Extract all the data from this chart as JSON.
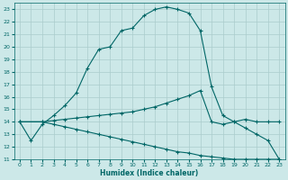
{
  "xlabel": "Humidex (Indice chaleur)",
  "background_color": "#cce8e8",
  "grid_color": "#aacccc",
  "line_color": "#006666",
  "xlim": [
    -0.5,
    23.5
  ],
  "ylim": [
    11,
    23.5
  ],
  "yticks": [
    11,
    12,
    13,
    14,
    15,
    16,
    17,
    18,
    19,
    20,
    21,
    22,
    23
  ],
  "xticks": [
    0,
    1,
    2,
    3,
    4,
    5,
    6,
    7,
    8,
    9,
    10,
    11,
    12,
    13,
    14,
    15,
    16,
    17,
    18,
    19,
    20,
    21,
    22,
    23
  ],
  "line1_x": [
    0,
    1,
    2,
    3,
    4,
    5,
    6,
    7,
    8,
    9,
    10,
    11,
    12,
    13,
    14,
    15,
    16,
    17,
    18,
    19,
    20,
    21,
    22,
    23
  ],
  "line1_y": [
    14,
    12.5,
    13.8,
    14.5,
    15.3,
    16.3,
    18.3,
    19.8,
    20.0,
    21.3,
    21.5,
    22.5,
    23.0,
    23.2,
    23.0,
    22.7,
    21.3,
    16.8,
    14.5,
    14.0,
    13.5,
    13.0,
    12.5,
    11.0
  ],
  "line2_x": [
    0,
    2,
    3,
    4,
    5,
    6,
    7,
    8,
    9,
    10,
    11,
    12,
    13,
    14,
    15,
    16,
    17,
    18,
    19,
    20,
    21,
    22,
    23
  ],
  "line2_y": [
    14,
    14.0,
    14.1,
    14.2,
    14.3,
    14.4,
    14.5,
    14.6,
    14.7,
    14.8,
    15.0,
    15.2,
    15.5,
    15.8,
    16.1,
    16.5,
    14.0,
    13.8,
    14.0,
    14.2,
    14.0,
    14.0,
    14.0
  ],
  "line3_x": [
    0,
    2,
    3,
    4,
    5,
    6,
    7,
    8,
    9,
    10,
    11,
    12,
    13,
    14,
    15,
    16,
    17,
    18,
    19,
    20,
    21,
    22,
    23
  ],
  "line3_y": [
    14,
    14.0,
    13.8,
    13.6,
    13.4,
    13.2,
    13.0,
    12.8,
    12.6,
    12.4,
    12.2,
    12.0,
    11.8,
    11.6,
    11.5,
    11.3,
    11.2,
    11.1,
    11.0,
    11.0,
    11.0,
    11.0,
    11.0
  ]
}
